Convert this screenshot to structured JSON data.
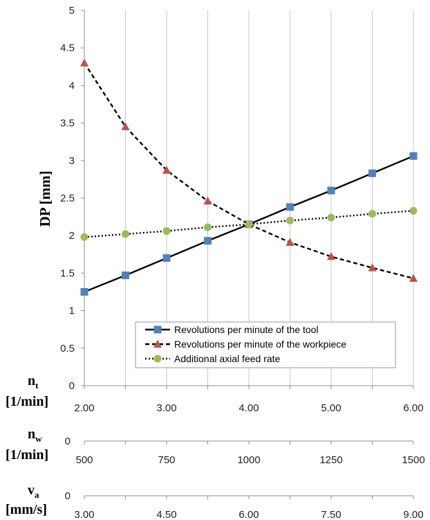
{
  "chart_data": {
    "type": "line",
    "ylabel": "DP [mm]",
    "ylim": [
      0,
      5
    ],
    "yticks": [
      "0",
      "0.5",
      "1",
      "1.5",
      "2",
      "2.5",
      "3",
      "3.5",
      "4",
      "4.5",
      "5"
    ],
    "grid": "vertical",
    "legend_position": "bottom-right",
    "axes": [
      {
        "symbol": "n",
        "subscript": "t",
        "unit": "[1/min]",
        "origin_label": "0",
        "ticks": [
          "2.00",
          "3.00",
          "4.00",
          "5.00",
          "6.00"
        ]
      },
      {
        "symbol": "n",
        "subscript": "w",
        "unit": "[1/min]",
        "origin_label": "0",
        "ticks": [
          "500",
          "750",
          "1000",
          "1250",
          "1500"
        ]
      },
      {
        "symbol": "v",
        "subscript": "a",
        "unit": "[mm/s]",
        "origin_label": "0",
        "ticks": [
          "3.00",
          "4.50",
          "6.00",
          "7.50",
          "9.00"
        ]
      }
    ],
    "x_positions": [
      0,
      1,
      2,
      3,
      4,
      5,
      6,
      7,
      8
    ],
    "series": [
      {
        "name": "Revolutions per minute of the tool",
        "marker": "square",
        "color": "#4f81bd",
        "line": "solid",
        "values": [
          1.25,
          1.47,
          1.7,
          1.93,
          2.15,
          2.38,
          2.6,
          2.83,
          3.06
        ]
      },
      {
        "name": "Revolutions per minute of the workpiece",
        "marker": "triangle",
        "color": "#c0504d",
        "line": "dashed",
        "values": [
          4.3,
          3.45,
          2.87,
          2.46,
          2.15,
          1.91,
          1.72,
          1.57,
          1.43
        ]
      },
      {
        "name": "Additional axial feed rate",
        "marker": "circle",
        "color": "#9bbb59",
        "line": "dotted",
        "values": [
          1.98,
          2.02,
          2.06,
          2.11,
          2.15,
          2.2,
          2.24,
          2.29,
          2.33
        ]
      }
    ]
  }
}
